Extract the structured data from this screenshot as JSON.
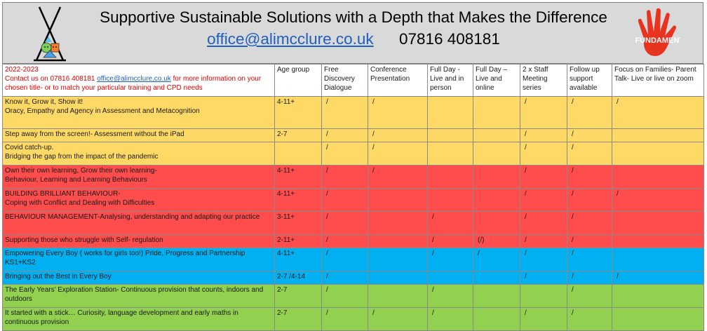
{
  "header": {
    "title": "Supportive Sustainable Solutions with a Depth that Makes the Difference",
    "email": "office@alimcclure.co.uk",
    "phone": "07816 408181",
    "right_logo_text": "FIVE FUNDAMENTALS"
  },
  "intro": {
    "year": "2022-2023",
    "line_before_email": "Contact us on 07816 408181",
    "email": "office@alimcclure.co.uk",
    "line_after_email": "for more information on your chosen title- or to match your particular training and CPD needs"
  },
  "columns": [
    "Age group",
    "Free Discovery Dialogue",
    "Conference Presentation",
    "Full Day - Live and in person",
    "Full Day – Live and online",
    "2 x Staff Meeting series",
    "Follow up support available",
    "Focus on Families- Parent Talk- Live or live on zoom"
  ],
  "rows": [
    {
      "color": "yellow",
      "height": 43,
      "title": "Know it, Grow it, Show it!",
      "subtitle": "Oracy, Empathy and Agency in Assessment and Metacognition",
      "age": "4-11+",
      "marks": [
        "/",
        "/",
        "",
        "",
        "/",
        "/",
        "/"
      ]
    },
    {
      "color": "yellow",
      "height": 16,
      "title": "Step away from the screen!- Assessment without the iPad",
      "subtitle": "",
      "age": "2-7",
      "marks": [
        "/",
        "/",
        "",
        "",
        "/",
        "/",
        ""
      ]
    },
    {
      "color": "yellow",
      "height": 30,
      "title": "Covid catch-up.",
      "subtitle": "Bridging the gap from the impact of the pandemic",
      "age": "",
      "marks": [
        "/",
        "/",
        "",
        "",
        "/",
        "/",
        ""
      ]
    },
    {
      "color": "red",
      "height": 30,
      "title": "Own their own learning, Grow their own learning-",
      "subtitle": "Behaviour, Learning and Learning Behaviours",
      "age": "4-11+",
      "marks": [
        "/",
        "/",
        "",
        "",
        "/",
        "/",
        ""
      ]
    },
    {
      "color": "red",
      "height": 30,
      "title": "BUILDING BRILLIANT BEHAVIOUR-",
      "subtitle": "Coping with Conflict and Dealing with Difficulties",
      "age": "4-11+",
      "marks": [
        "/",
        "",
        "",
        "",
        "/",
        "/",
        "/"
      ]
    },
    {
      "color": "red",
      "height": 30,
      "title": "BEHAVIOUR MANAGEMENT-Analysing, understanding and adapting our practice",
      "subtitle": "",
      "age": "3-11+",
      "marks": [
        "/",
        "",
        "/",
        "",
        "/",
        "/",
        ""
      ]
    },
    {
      "color": "red",
      "height": 16,
      "title": "Supporting those who struggle with Self- regulation",
      "subtitle": "",
      "age": "2-11+",
      "marks": [
        "/",
        "",
        "/",
        "(/)",
        "/",
        "/",
        ""
      ]
    },
    {
      "color": "blue",
      "height": 30,
      "title": "Empowering Every Boy ( works for girls too!)  Pride, Progress and Partnership  KS1+KS2",
      "subtitle": "",
      "age": "4-11+",
      "marks": [
        "/",
        "",
        "/",
        "/",
        "/",
        "/",
        ""
      ]
    },
    {
      "color": "blue",
      "height": 16,
      "title": "Bringing out the Best in Every Boy",
      "subtitle": "",
      "age": "2-7 /4-14",
      "marks": [
        "/",
        "",
        "",
        "",
        "/",
        "/",
        "/"
      ]
    },
    {
      "color": "green",
      "height": 30,
      "title": "The Early Years’ Exploration Station- Continuous provision that counts, indoors and outdoors",
      "subtitle": "",
      "age": "2-7",
      "marks": [
        "/",
        "",
        "/",
        "",
        "",
        "/",
        ""
      ]
    },
    {
      "color": "green",
      "height": 30,
      "title": "It started with a stick… Curiosity, language development and early maths in continuous provision",
      "subtitle": "",
      "age": "2-7",
      "marks": [
        "/",
        "/",
        "/",
        "",
        "/",
        "/",
        ""
      ]
    }
  ]
}
